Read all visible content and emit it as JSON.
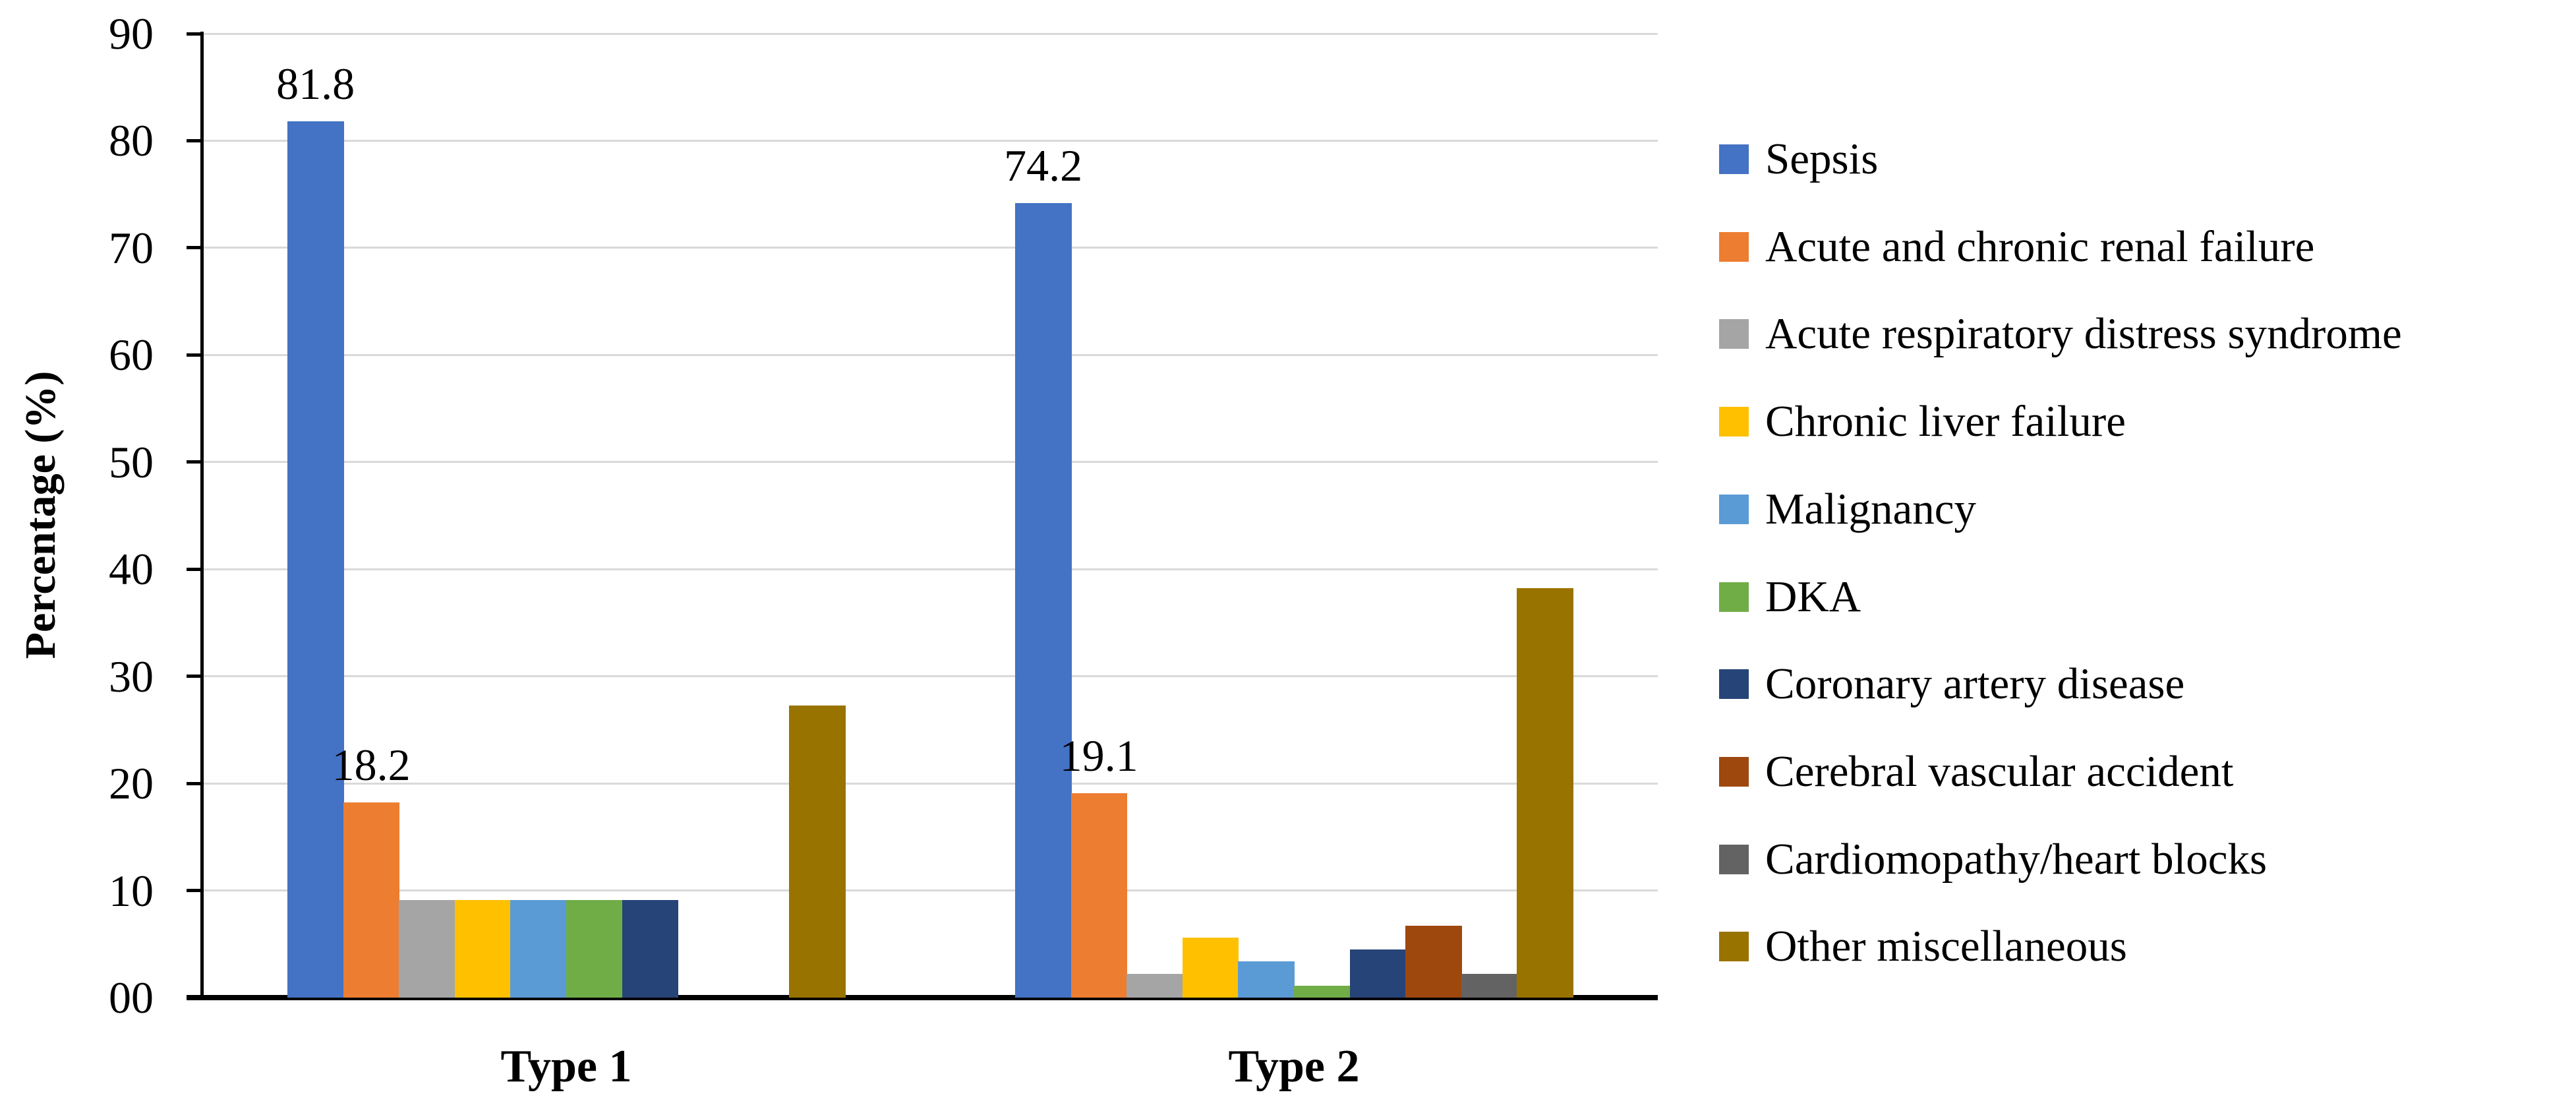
{
  "figure": {
    "background": "#FFFFFF",
    "text_color": "#000000"
  },
  "chart_data": {
    "type": "bar",
    "title": "",
    "xlabel": "",
    "ylabel": "Percentage (%)",
    "ylim": [
      0,
      90
    ],
    "ytick_interval": 10,
    "ytick_labels": [
      "00",
      "10",
      "20",
      "30",
      "40",
      "50",
      "60",
      "70",
      "80",
      "90"
    ],
    "grid": "horizontal-major",
    "gridline_color": "#D9D9D9",
    "axis_color": "#000000",
    "legend_position": "right",
    "categories": [
      "Type 1",
      "Type 2"
    ],
    "series": [
      {
        "name": "Sepsis",
        "color": "#4472C4",
        "values": [
          81.8,
          74.2
        ],
        "data_labels": [
          "81.8",
          "74.2"
        ]
      },
      {
        "name": "Acute and chronic renal failure",
        "color": "#ED7D31",
        "values": [
          18.2,
          19.1
        ],
        "data_labels": [
          "18.2",
          "19.1"
        ]
      },
      {
        "name": "Acute respiratory distress syndrome",
        "color": "#A5A5A5",
        "values": [
          9.1,
          2.2
        ],
        "data_labels": [
          null,
          null
        ]
      },
      {
        "name": "Chronic liver failure",
        "color": "#FFC000",
        "values": [
          9.1,
          5.6
        ],
        "data_labels": [
          null,
          null
        ]
      },
      {
        "name": "Malignancy",
        "color": "#5B9BD5",
        "values": [
          9.1,
          3.4
        ],
        "data_labels": [
          null,
          null
        ]
      },
      {
        "name": "DKA",
        "color": "#70AD47",
        "values": [
          9.1,
          1.1
        ],
        "data_labels": [
          null,
          null
        ]
      },
      {
        "name": "Coronary artery disease",
        "color": "#264478",
        "values": [
          9.1,
          4.5
        ],
        "data_labels": [
          null,
          null
        ]
      },
      {
        "name": "Cerebral vascular accident",
        "color": "#9E480E",
        "values": [
          0,
          6.7
        ],
        "data_labels": [
          null,
          null
        ]
      },
      {
        "name": "Cardiomopathy/heart blocks",
        "color": "#636363",
        "values": [
          0,
          2.2
        ],
        "data_labels": [
          null,
          null
        ]
      },
      {
        "name": "Other miscellaneous",
        "color": "#997300",
        "values": [
          27.3,
          38.2
        ],
        "data_labels": [
          null,
          null
        ]
      }
    ],
    "shown_data_labels": [
      "81.8",
      "18.2",
      "27.3",
      "74.2",
      "19.1",
      "38.2"
    ]
  }
}
